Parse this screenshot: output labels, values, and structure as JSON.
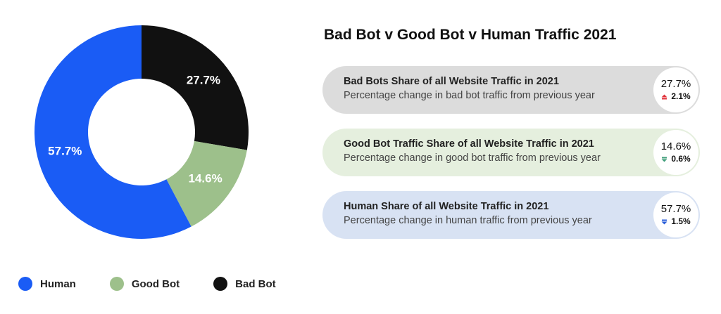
{
  "title": "Bad Bot v Good Bot v Human Traffic 2021",
  "chart_data": {
    "type": "pie",
    "donut": true,
    "categories": [
      "Bad Bot",
      "Good Bot",
      "Human"
    ],
    "values": [
      27.7,
      14.6,
      57.7
    ],
    "value_labels": [
      "27.7%",
      "14.6%",
      "57.7%"
    ],
    "colors": [
      "#111111",
      "#9dc08b",
      "#1a5cf5"
    ],
    "start": "12 o'clock, clockwise",
    "legend_position": "bottom-left"
  },
  "legend": [
    {
      "label": "Human",
      "color": "#1a5cf5"
    },
    {
      "label": "Good Bot",
      "color": "#9dc08b"
    },
    {
      "label": "Bad Bot",
      "color": "#111111"
    }
  ],
  "cards": [
    {
      "heading": "Bad Bots Share of all Website Traffic in 2021",
      "sub": "Percentage change in bad bot traffic from previous year",
      "value": "27.7%",
      "change": "2.1%",
      "direction": "up",
      "bg": "#dcdcdc",
      "marker_color": "#e0313a"
    },
    {
      "heading": "Good Bot Traffic Share of all Website Traffic in 2021",
      "sub": "Percentage change in good bot traffic from previous year",
      "value": "14.6%",
      "change": "0.6%",
      "direction": "down",
      "bg": "#e5efde",
      "marker_color": "#3f9e7a"
    },
    {
      "heading": "Human Share of all Website Traffic in 2021",
      "sub": "Percentage change in human traffic from previous year",
      "value": "57.7%",
      "change": "1.5%",
      "direction": "down",
      "bg": "#d8e2f3",
      "marker_color": "#2b5fd9"
    }
  ]
}
